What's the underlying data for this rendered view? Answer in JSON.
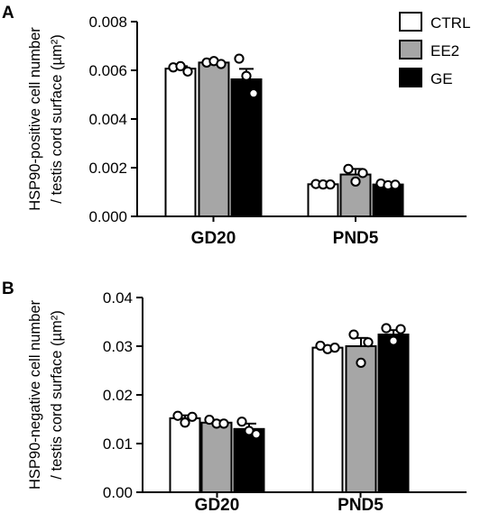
{
  "figure": {
    "panels": [
      "A",
      "B"
    ]
  },
  "legend": {
    "items": [
      {
        "label": "CTRL",
        "color": "#ffffff"
      },
      {
        "label": "EE2",
        "color": "#a6a6a6"
      },
      {
        "label": "GE",
        "color": "#000000"
      }
    ]
  },
  "chart_data": [
    {
      "type": "bar",
      "panel": "A",
      "ylabel_lines": [
        "HSP90-positive cell number",
        "/ testis cord surface (µm²)"
      ],
      "categories": [
        "GD20",
        "PND5"
      ],
      "ylim": [
        0,
        0.008
      ],
      "yticks": [
        0.0,
        0.002,
        0.004,
        0.006,
        0.008
      ],
      "ytick_labels": [
        "0.000",
        "0.002",
        "0.004",
        "0.006",
        "0.008"
      ],
      "legend_position": "top-right",
      "series": [
        {
          "name": "CTRL",
          "color": "#ffffff",
          "values": [
            0.00607,
            0.00132
          ],
          "errors": [
            0.0001,
            5e-05
          ],
          "points": [
            [
              0.00612,
              0.00617,
              0.00595
            ],
            [
              0.00133,
              0.00131,
              0.00131
            ]
          ]
        },
        {
          "name": "EE2",
          "color": "#a6a6a6",
          "values": [
            0.00632,
            0.00172
          ],
          "errors": [
            7e-05,
            0.00023
          ],
          "points": [
            [
              0.00632,
              0.00638,
              0.00626
            ],
            [
              0.00195,
              0.00143,
              0.00178
            ]
          ]
        },
        {
          "name": "GE",
          "color": "#000000",
          "values": [
            0.00563,
            0.00131
          ],
          "errors": [
            0.00043,
            5e-05
          ],
          "points": [
            [
              0.00648,
              0.00577,
              0.00505
            ],
            [
              0.00135,
              0.00128,
              0.0013
            ]
          ]
        }
      ]
    },
    {
      "type": "bar",
      "panel": "B",
      "ylabel_lines": [
        "HSP90-negative cell number",
        "/ testis cord surface (µm²)"
      ],
      "categories": [
        "GD20",
        "PND5"
      ],
      "ylim": [
        0,
        0.04
      ],
      "yticks": [
        0.0,
        0.01,
        0.02,
        0.03,
        0.04
      ],
      "ytick_labels": [
        "0.00",
        "0.01",
        "0.02",
        "0.03",
        "0.04"
      ],
      "series": [
        {
          "name": "CTRL",
          "color": "#ffffff",
          "values": [
            0.0152,
            0.0297
          ],
          "errors": [
            0.0006,
            0.0003
          ],
          "points": [
            [
              0.0157,
              0.0143,
              0.0155
            ],
            [
              0.0301,
              0.0294,
              0.0297
            ]
          ]
        },
        {
          "name": "EE2",
          "color": "#a6a6a6",
          "values": [
            0.0143,
            0.03
          ],
          "errors": [
            0.0004,
            0.0017
          ],
          "points": [
            [
              0.0149,
              0.0141,
              0.0141
            ],
            [
              0.0324,
              0.0266,
              0.0308
            ]
          ]
        },
        {
          "name": "GE",
          "color": "#000000",
          "values": [
            0.013,
            0.0324
          ],
          "errors": [
            0.0011,
            0.0009
          ],
          "points": [
            [
              0.0145,
              0.0126,
              0.0119
            ],
            [
              0.0337,
              0.0311,
              0.0335
            ]
          ]
        }
      ]
    }
  ]
}
